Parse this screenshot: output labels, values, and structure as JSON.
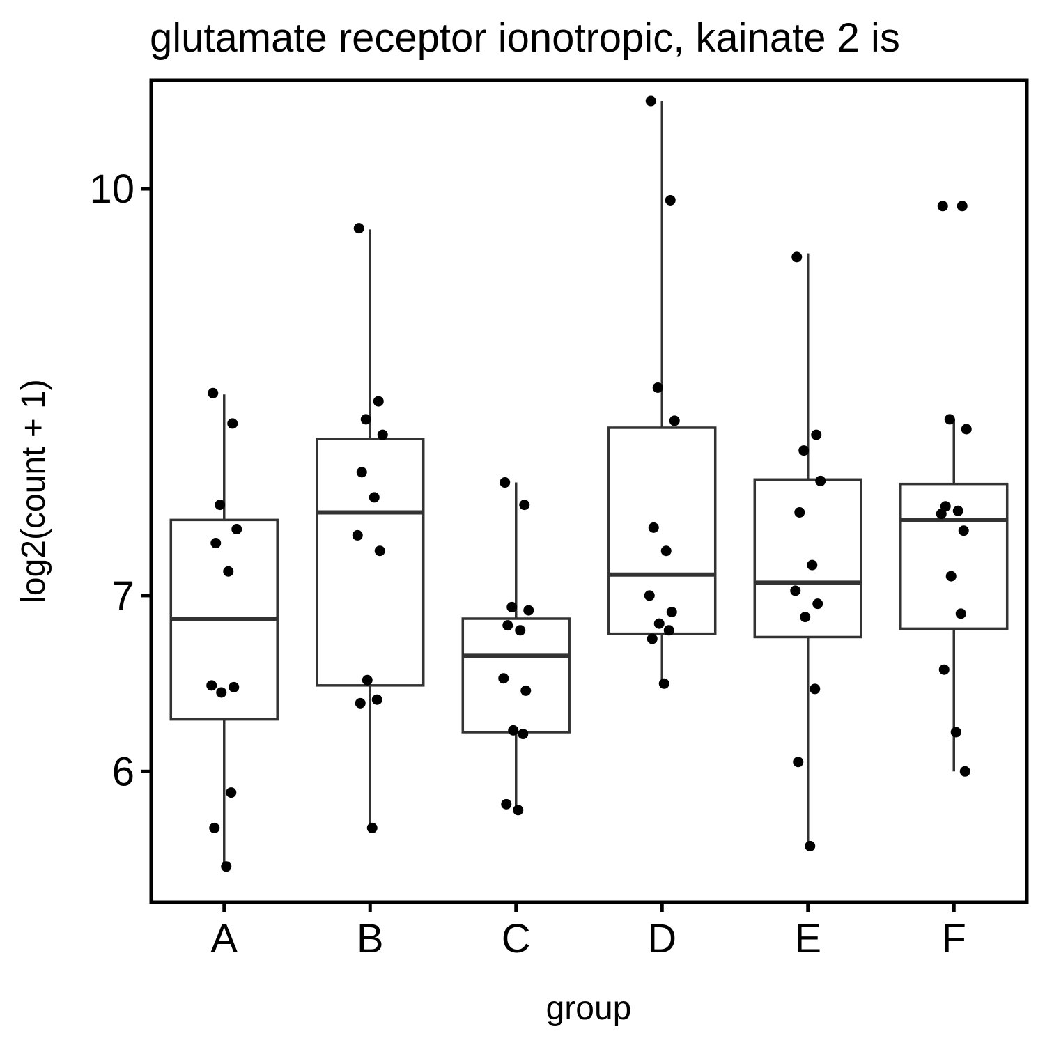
{
  "chart_data": {
    "type": "box",
    "title": "glutamate receptor ionotropic, kainate 2 is",
    "xlabel": "group",
    "ylabel": "log2(count + 1)",
    "y_scale": "log",
    "y_ticks": [
      6,
      7,
      10
    ],
    "ylim": [
      5.35,
      11.0
    ],
    "grid": false,
    "categories": [
      "A",
      "B",
      "C",
      "D",
      "E",
      "F"
    ],
    "boxes": [
      {
        "group": "A",
        "whisker_low": 5.52,
        "q1": 6.28,
        "median": 6.86,
        "q3": 7.48,
        "whisker_high": 8.35
      },
      {
        "group": "B",
        "whisker_low": 5.72,
        "q1": 6.47,
        "median": 7.53,
        "q3": 8.03,
        "whisker_high": 9.65
      },
      {
        "group": "C",
        "whisker_low": 5.81,
        "q1": 6.21,
        "median": 6.64,
        "q3": 6.86,
        "whisker_high": 7.73
      },
      {
        "group": "D",
        "whisker_low": 6.48,
        "q1": 6.77,
        "median": 7.13,
        "q3": 8.11,
        "whisker_high": 10.8
      },
      {
        "group": "E",
        "whisker_low": 5.63,
        "q1": 6.75,
        "median": 7.08,
        "q3": 7.75,
        "whisker_high": 9.45
      },
      {
        "group": "F",
        "whisker_low": 6.0,
        "q1": 6.8,
        "median": 7.48,
        "q3": 7.72,
        "whisker_high": 8.17
      }
    ],
    "points": [
      {
        "group": "A",
        "values": [
          8.36,
          8.14,
          7.58,
          7.42,
          7.33,
          7.15,
          6.47,
          6.46,
          6.43,
          5.89,
          5.71,
          5.52
        ]
      },
      {
        "group": "B",
        "values": [
          9.66,
          8.3,
          8.17,
          8.06,
          7.8,
          7.63,
          7.38,
          7.28,
          6.5,
          6.39,
          6.37,
          5.71
        ]
      },
      {
        "group": "C",
        "values": [
          7.73,
          7.58,
          6.93,
          6.91,
          6.82,
          6.79,
          6.51,
          6.44,
          6.22,
          6.2,
          5.83,
          5.8
        ]
      },
      {
        "group": "D",
        "values": [
          10.8,
          9.9,
          8.4,
          8.16,
          7.43,
          7.28,
          7.0,
          6.9,
          6.83,
          6.79,
          6.74,
          6.48
        ]
      },
      {
        "group": "E",
        "values": [
          9.42,
          8.06,
          7.95,
          7.74,
          7.53,
          7.19,
          7.03,
          6.95,
          6.87,
          6.45,
          6.05,
          5.62
        ]
      },
      {
        "group": "F",
        "values": [
          9.85,
          9.85,
          8.17,
          8.1,
          7.57,
          7.54,
          7.52,
          7.41,
          7.12,
          6.89,
          6.56,
          6.21,
          6.0
        ]
      }
    ]
  }
}
